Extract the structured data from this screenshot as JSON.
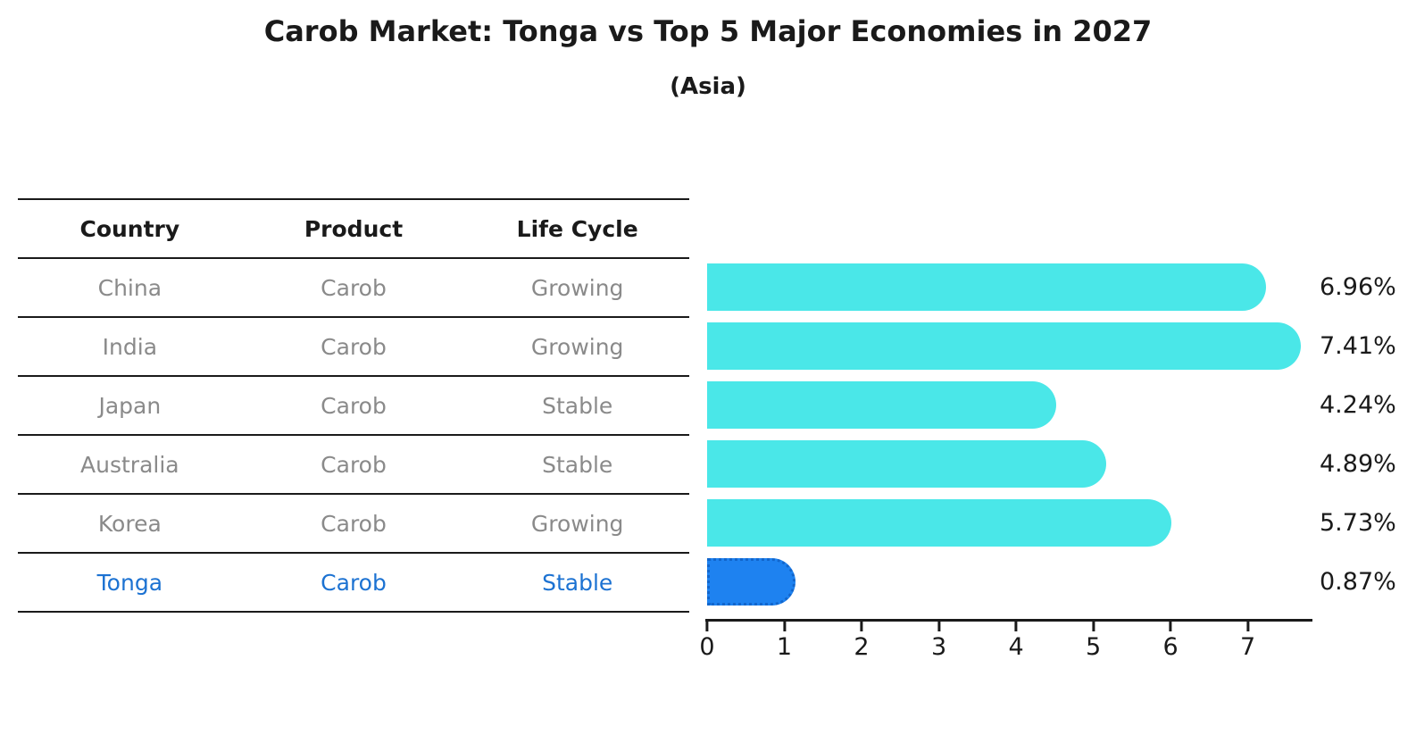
{
  "header": {
    "title": "Carob Market: Tonga vs Top 5 Major Economies in 2027",
    "subtitle": "(Asia)"
  },
  "table": {
    "columns": [
      "Country",
      "Product",
      "Life Cycle"
    ],
    "rows": [
      {
        "country": "China",
        "product": "Carob",
        "life_cycle": "Growing",
        "highlight": false
      },
      {
        "country": "India",
        "product": "Carob",
        "life_cycle": "Growing",
        "highlight": false
      },
      {
        "country": "Japan",
        "product": "Carob",
        "life_cycle": "Stable",
        "highlight": false
      },
      {
        "country": "Australia",
        "product": "Carob",
        "life_cycle": "Stable",
        "highlight": false
      },
      {
        "country": "Korea",
        "product": "Carob",
        "life_cycle": "Growing",
        "highlight": false
      },
      {
        "country": "Tonga",
        "product": "Carob",
        "life_cycle": "Stable",
        "highlight": true
      }
    ]
  },
  "chart_data": {
    "type": "bar",
    "orientation": "horizontal",
    "title": "Carob Market: Tonga vs Top 5 Major Economies in 2027",
    "subtitle": "(Asia)",
    "categories": [
      "China",
      "India",
      "Japan",
      "Australia",
      "Korea",
      "Tonga"
    ],
    "values": [
      6.96,
      7.41,
      4.24,
      4.89,
      5.73,
      0.87
    ],
    "value_labels": [
      "6.96%",
      "7.41%",
      "4.24%",
      "4.89%",
      "5.73%",
      "0.87%"
    ],
    "xlabel": "",
    "ylabel": "",
    "xlim": [
      0,
      7.86
    ],
    "x_ticks": [
      0,
      1,
      2,
      3,
      4,
      5,
      6,
      7
    ],
    "grid": false,
    "legend": false,
    "highlight_index": 5,
    "colors": {
      "bar_default": "#4AE7E8",
      "bar_highlight": "#1E82F0",
      "bar_highlight_border": "#1266CC",
      "text_default": "#8A8A8A",
      "text_highlight": "#1C72D2",
      "axis": "#1A1A1A"
    }
  }
}
